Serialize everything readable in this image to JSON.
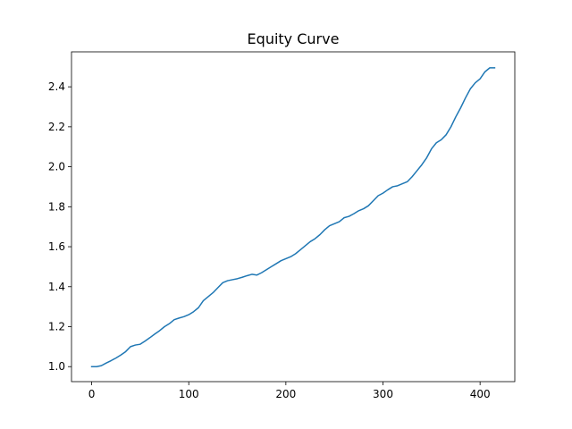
{
  "chart_data": {
    "type": "line",
    "title": "Equity Curve",
    "xlabel": "",
    "ylabel": "",
    "xlim": [
      -20.75,
      435.75
    ],
    "ylim": [
      0.925,
      2.575
    ],
    "xticks": [
      0,
      100,
      200,
      300,
      400
    ],
    "yticks": [
      1.0,
      1.2,
      1.4,
      1.6,
      1.8,
      2.0,
      2.2,
      2.4
    ],
    "ytick_labels": [
      "1.0",
      "1.2",
      "1.4",
      "1.6",
      "1.8",
      "2.0",
      "2.2",
      "2.4"
    ],
    "grid": false,
    "legend": "none",
    "line_color": "#1f77b4",
    "series": [
      {
        "points": [
          [
            0,
            1.0
          ],
          [
            5,
            1.0
          ],
          [
            10,
            1.005
          ],
          [
            15,
            1.018
          ],
          [
            20,
            1.03
          ],
          [
            25,
            1.043
          ],
          [
            30,
            1.058
          ],
          [
            35,
            1.075
          ],
          [
            40,
            1.1
          ],
          [
            45,
            1.108
          ],
          [
            50,
            1.112
          ],
          [
            55,
            1.128
          ],
          [
            60,
            1.145
          ],
          [
            65,
            1.163
          ],
          [
            70,
            1.18
          ],
          [
            75,
            1.2
          ],
          [
            80,
            1.215
          ],
          [
            85,
            1.235
          ],
          [
            90,
            1.243
          ],
          [
            95,
            1.25
          ],
          [
            100,
            1.26
          ],
          [
            105,
            1.275
          ],
          [
            110,
            1.295
          ],
          [
            115,
            1.33
          ],
          [
            120,
            1.35
          ],
          [
            125,
            1.37
          ],
          [
            130,
            1.395
          ],
          [
            135,
            1.42
          ],
          [
            140,
            1.43
          ],
          [
            145,
            1.435
          ],
          [
            150,
            1.44
          ],
          [
            155,
            1.447
          ],
          [
            160,
            1.455
          ],
          [
            165,
            1.462
          ],
          [
            170,
            1.458
          ],
          [
            175,
            1.47
          ],
          [
            180,
            1.485
          ],
          [
            185,
            1.5
          ],
          [
            190,
            1.515
          ],
          [
            195,
            1.53
          ],
          [
            200,
            1.54
          ],
          [
            205,
            1.55
          ],
          [
            210,
            1.565
          ],
          [
            215,
            1.585
          ],
          [
            220,
            1.605
          ],
          [
            225,
            1.625
          ],
          [
            230,
            1.64
          ],
          [
            235,
            1.66
          ],
          [
            240,
            1.685
          ],
          [
            245,
            1.705
          ],
          [
            250,
            1.715
          ],
          [
            255,
            1.725
          ],
          [
            260,
            1.745
          ],
          [
            265,
            1.752
          ],
          [
            270,
            1.765
          ],
          [
            275,
            1.78
          ],
          [
            280,
            1.79
          ],
          [
            285,
            1.805
          ],
          [
            290,
            1.83
          ],
          [
            295,
            1.855
          ],
          [
            300,
            1.868
          ],
          [
            305,
            1.885
          ],
          [
            310,
            1.9
          ],
          [
            315,
            1.905
          ],
          [
            320,
            1.915
          ],
          [
            325,
            1.925
          ],
          [
            330,
            1.95
          ],
          [
            335,
            1.98
          ],
          [
            340,
            2.01
          ],
          [
            345,
            2.045
          ],
          [
            350,
            2.09
          ],
          [
            355,
            2.12
          ],
          [
            360,
            2.135
          ],
          [
            365,
            2.16
          ],
          [
            370,
            2.2
          ],
          [
            375,
            2.25
          ],
          [
            380,
            2.295
          ],
          [
            385,
            2.345
          ],
          [
            390,
            2.39
          ],
          [
            395,
            2.42
          ],
          [
            400,
            2.44
          ],
          [
            405,
            2.475
          ],
          [
            410,
            2.495
          ],
          [
            415,
            2.495
          ]
        ]
      }
    ]
  }
}
